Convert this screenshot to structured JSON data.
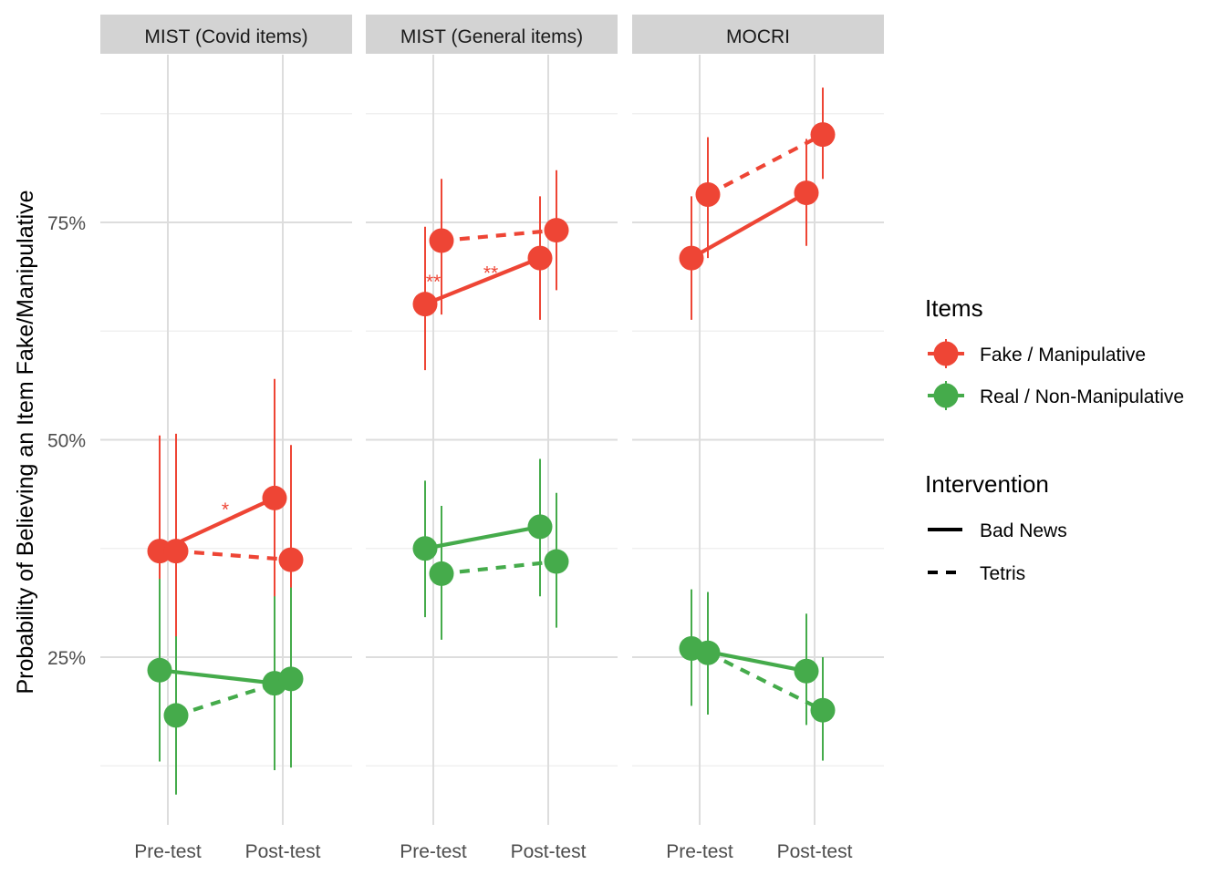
{
  "chart_data": {
    "type": "line",
    "ylabel": "Probability of Believing an Item Fake/Manipulative",
    "xlabel": "",
    "y_ticks": [
      {
        "value": 0.25,
        "label": "25%"
      },
      {
        "value": 0.5,
        "label": "50%"
      },
      {
        "value": 0.75,
        "label": "75%"
      }
    ],
    "ylim": [
      0.11,
      0.93
    ],
    "x_categories": [
      "Pre-test",
      "Post-test"
    ],
    "colors": {
      "fake": "#ee4535",
      "real": "#45ab4b",
      "strip": "#d3d3d3",
      "grid_major": "#dddddd",
      "grid_minor": "#eeeeee"
    },
    "panels": [
      {
        "title": "MIST (Covid items)",
        "series": [
          {
            "item": "fake",
            "intervention": "Bad News",
            "points": [
              {
                "x": "Pre-test",
                "y": 0.372,
                "lo": 0.258,
                "hi": 0.505
              },
              {
                "x": "Post-test",
                "y": 0.433,
                "lo": 0.3,
                "hi": 0.57
              }
            ]
          },
          {
            "item": "fake",
            "intervention": "Tetris",
            "points": [
              {
                "x": "Pre-test",
                "y": 0.372,
                "lo": 0.257,
                "hi": 0.507
              },
              {
                "x": "Post-test",
                "y": 0.362,
                "lo": 0.249,
                "hi": 0.494
              }
            ]
          },
          {
            "item": "real",
            "intervention": "Bad News",
            "points": [
              {
                "x": "Pre-test",
                "y": 0.235,
                "lo": 0.13,
                "hi": 0.34
              },
              {
                "x": "Post-test",
                "y": 0.22,
                "lo": 0.12,
                "hi": 0.32
              }
            ]
          },
          {
            "item": "real",
            "intervention": "Tetris",
            "points": [
              {
                "x": "Pre-test",
                "y": 0.183,
                "lo": 0.092,
                "hi": 0.274
              },
              {
                "x": "Post-test",
                "y": 0.225,
                "lo": 0.123,
                "hi": 0.33
              }
            ]
          }
        ],
        "annotations": [
          {
            "text": "*",
            "x": 0.5,
            "y": 0.425
          }
        ]
      },
      {
        "title": "MIST (General items)",
        "series": [
          {
            "item": "fake",
            "intervention": "Bad News",
            "points": [
              {
                "x": "Pre-test",
                "y": 0.656,
                "lo": 0.58,
                "hi": 0.745
              },
              {
                "x": "Post-test",
                "y": 0.709,
                "lo": 0.638,
                "hi": 0.78
              }
            ]
          },
          {
            "item": "fake",
            "intervention": "Tetris",
            "points": [
              {
                "x": "Pre-test",
                "y": 0.729,
                "lo": 0.644,
                "hi": 0.8
              },
              {
                "x": "Post-test",
                "y": 0.741,
                "lo": 0.672,
                "hi": 0.81
              }
            ]
          },
          {
            "item": "real",
            "intervention": "Bad News",
            "points": [
              {
                "x": "Pre-test",
                "y": 0.375,
                "lo": 0.296,
                "hi": 0.453
              },
              {
                "x": "Post-test",
                "y": 0.4,
                "lo": 0.32,
                "hi": 0.478
              }
            ]
          },
          {
            "item": "real",
            "intervention": "Tetris",
            "points": [
              {
                "x": "Pre-test",
                "y": 0.346,
                "lo": 0.27,
                "hi": 0.424
              },
              {
                "x": "Post-test",
                "y": 0.36,
                "lo": 0.284,
                "hi": 0.439
              }
            ]
          }
        ],
        "annotations": [
          {
            "text": "**",
            "x": 0.0,
            "y": 0.687
          },
          {
            "text": "**",
            "x": 0.5,
            "y": 0.697
          }
        ]
      },
      {
        "title": "MOCRI",
        "series": [
          {
            "item": "fake",
            "intervention": "Bad News",
            "points": [
              {
                "x": "Pre-test",
                "y": 0.709,
                "lo": 0.638,
                "hi": 0.78
              },
              {
                "x": "Post-test",
                "y": 0.784,
                "lo": 0.723,
                "hi": 0.846
              }
            ]
          },
          {
            "item": "fake",
            "intervention": "Tetris",
            "points": [
              {
                "x": "Pre-test",
                "y": 0.782,
                "lo": 0.709,
                "hi": 0.848
              },
              {
                "x": "Post-test",
                "y": 0.851,
                "lo": 0.8,
                "hi": 0.905
              }
            ]
          },
          {
            "item": "real",
            "intervention": "Bad News",
            "points": [
              {
                "x": "Pre-test",
                "y": 0.26,
                "lo": 0.194,
                "hi": 0.328
              },
              {
                "x": "Post-test",
                "y": 0.234,
                "lo": 0.172,
                "hi": 0.3
              }
            ]
          },
          {
            "item": "real",
            "intervention": "Tetris",
            "points": [
              {
                "x": "Pre-test",
                "y": 0.255,
                "lo": 0.184,
                "hi": 0.325
              },
              {
                "x": "Post-test",
                "y": 0.189,
                "lo": 0.131,
                "hi": 0.25
              }
            ]
          }
        ],
        "annotations": []
      }
    ],
    "legend": {
      "position": "right",
      "items_title": "Items",
      "items": [
        {
          "key": "fake",
          "label": "Fake / Manipulative"
        },
        {
          "key": "real",
          "label": "Real / Non-Manipulative"
        }
      ],
      "intervention_title": "Intervention",
      "interventions": [
        {
          "key": "Bad News",
          "label": "Bad News",
          "dash": "solid"
        },
        {
          "key": "Tetris",
          "label": "Tetris",
          "dash": "dashed"
        }
      ]
    },
    "grid": true
  }
}
